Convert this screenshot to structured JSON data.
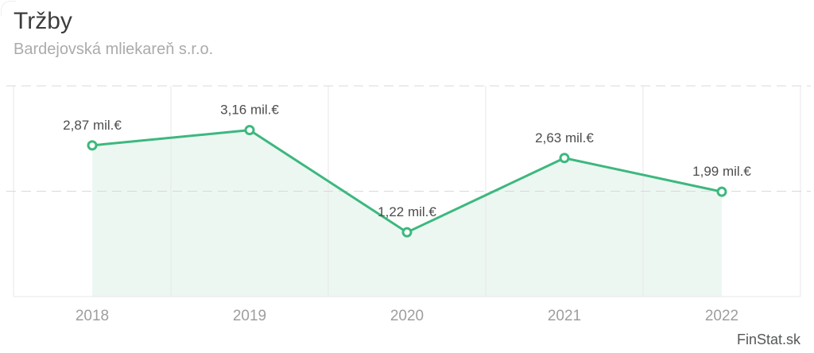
{
  "page": {
    "title": "Tržby",
    "subtitle": "Bardejovská mliekareň s.r.o.",
    "watermark": "FinStat.sk"
  },
  "colors": {
    "line": "#3cb87e",
    "marker_fill": "#ffffff",
    "area_fill": "#edf7f2",
    "grid_dashed": "#d9d9d9",
    "grid_solid": "#e7e7e7",
    "title_text": "#3d3d3d",
    "subtitle_text": "#ababab",
    "value_label_text": "#4d4d4d",
    "axis_label_text": "#9e9e9e",
    "watermark_text": "#555759"
  },
  "chart_data": {
    "type": "line",
    "title": "Tržby",
    "subtitle": "Bardejovská mliekareň s.r.o.",
    "categories": [
      "2018",
      "2019",
      "2020",
      "2021",
      "2022"
    ],
    "values": [
      2.87,
      3.16,
      1.22,
      2.63,
      1.99
    ],
    "point_labels": [
      "2,87 mil.€",
      "3,16 mil.€",
      "1,22 mil.€",
      "2,63 mil.€",
      "1,99 mil.€"
    ],
    "unit": "mil.€",
    "xlabel": "",
    "ylabel": "",
    "ylim": [
      0,
      4
    ],
    "gridlines_y": [
      0,
      2,
      4
    ],
    "grid_style": "horizontal dashed at 2 and 4, solid vertical band separators, solid bottom axis",
    "legend": "none",
    "marker": "open-circle",
    "area_under_line": true,
    "source_watermark": "FinStat.sk"
  }
}
